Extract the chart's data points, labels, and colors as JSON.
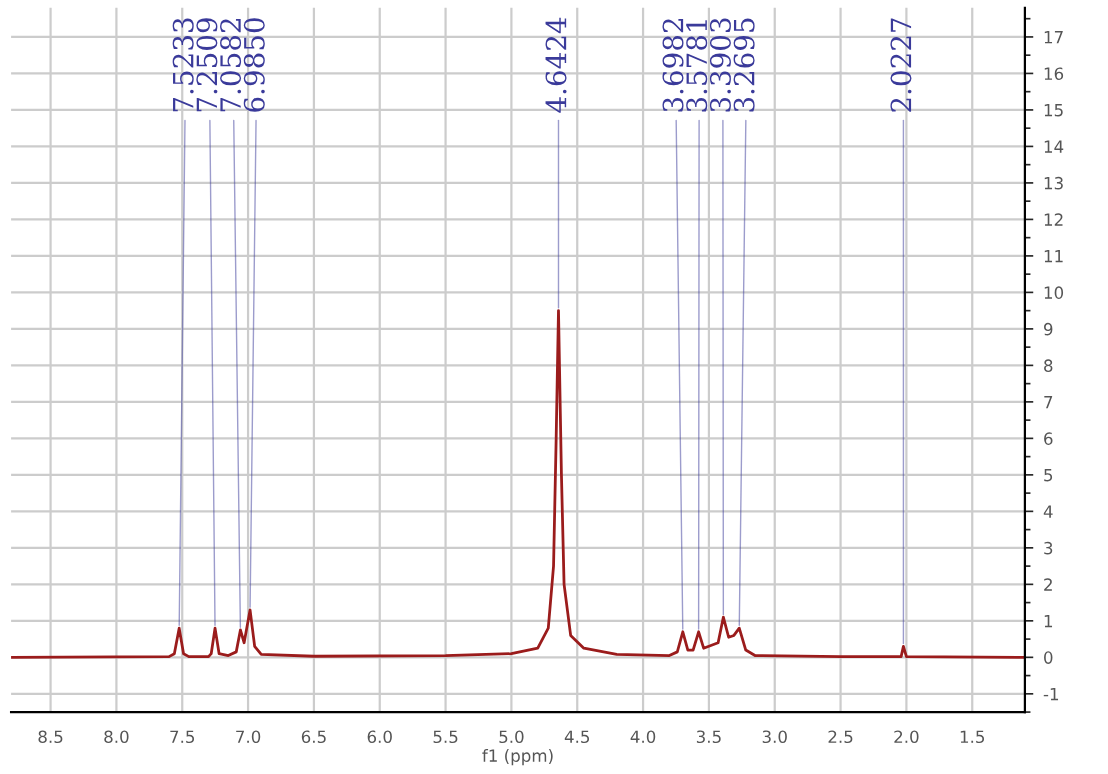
{
  "chart_data": {
    "type": "line",
    "xlabel": "f1 (ppm)",
    "series": [
      {
        "color": "#9b1c1c",
        "x": [
          8.8,
          7.6,
          7.56,
          7.5233,
          7.49,
          7.45,
          7.3,
          7.28,
          7.2509,
          7.22,
          7.15,
          7.09,
          7.0582,
          7.03,
          6.985,
          6.95,
          6.9,
          6.5,
          5.5,
          5.0,
          4.8,
          4.72,
          4.68,
          4.66,
          4.6424,
          4.62,
          4.6,
          4.55,
          4.45,
          4.2,
          3.8,
          3.74,
          3.6982,
          3.66,
          3.62,
          3.5781,
          3.54,
          3.43,
          3.3903,
          3.35,
          3.31,
          3.2695,
          3.22,
          3.15,
          2.5,
          2.04,
          2.0227,
          2.0,
          1.1
        ],
        "values": [
          0.0,
          0.02,
          0.1,
          0.8,
          0.1,
          0.02,
          0.02,
          0.1,
          0.8,
          0.1,
          0.05,
          0.15,
          0.75,
          0.4,
          1.3,
          0.3,
          0.08,
          0.03,
          0.05,
          0.1,
          0.25,
          0.8,
          2.5,
          6.0,
          9.5,
          5.0,
          2.0,
          0.6,
          0.25,
          0.08,
          0.05,
          0.15,
          0.7,
          0.2,
          0.2,
          0.7,
          0.25,
          0.4,
          1.1,
          0.55,
          0.6,
          0.8,
          0.2,
          0.05,
          0.02,
          0.02,
          0.3,
          0.02,
          0.0
        ]
      }
    ],
    "annotations": [
      {
        "text": "7.5233",
        "x": 7.5233,
        "y": 0.8
      },
      {
        "text": "7.2509",
        "x": 7.2509,
        "y": 0.8
      },
      {
        "text": "7.0582",
        "x": 7.0582,
        "y": 0.75
      },
      {
        "text": "6.9850",
        "x": 6.985,
        "y": 1.3
      },
      {
        "text": "4.6424",
        "x": 4.6424,
        "y": 9.5
      },
      {
        "text": "3.6982",
        "x": 3.6982,
        "y": 0.7
      },
      {
        "text": "3.5781",
        "x": 3.5781,
        "y": 0.7
      },
      {
        "text": "3.3903",
        "x": 3.3903,
        "y": 1.1
      },
      {
        "text": "3.2695",
        "x": 3.2695,
        "y": 0.8
      },
      {
        "text": "2.0227",
        "x": 2.0227,
        "y": 0.3
      }
    ],
    "xlim": [
      8.8,
      1.1
    ],
    "xticks": [
      8.5,
      {
        "value": 8,
        "label": "8.0"
      },
      7.5,
      {
        "value": 7,
        "label": "7.0"
      },
      6.5,
      {
        "value": 6,
        "label": "6.0"
      },
      5.5,
      {
        "value": 5,
        "label": "5.0"
      },
      4.5,
      {
        "value": 4,
        "label": "4.0"
      },
      3.5,
      {
        "value": 3,
        "label": "3.0"
      },
      2.5,
      {
        "value": 2,
        "label": "2.0"
      },
      1.5
    ],
    "ylim": [
      -1.5,
      17.8
    ],
    "yticks": [
      -1,
      0,
      1,
      2,
      3,
      4,
      5,
      6,
      7,
      8,
      9,
      10,
      11,
      12,
      13,
      14,
      15,
      16,
      17
    ],
    "grid": true,
    "legend": false,
    "line_style": "solid",
    "marker": "none"
  }
}
